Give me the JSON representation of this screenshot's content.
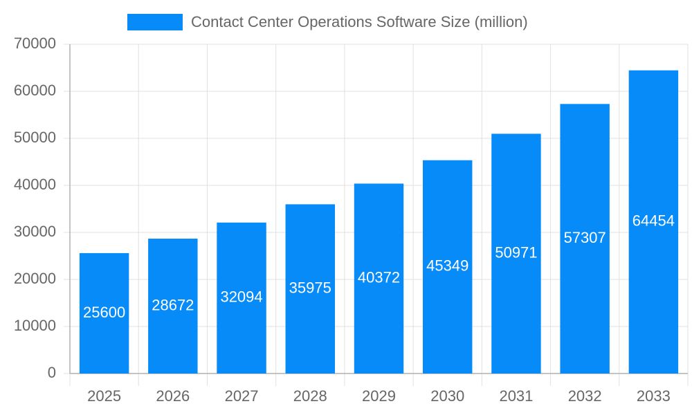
{
  "chart_data": {
    "type": "bar",
    "categories": [
      "2025",
      "2026",
      "2027",
      "2028",
      "2029",
      "2030",
      "2031",
      "2032",
      "2033"
    ],
    "series": [
      {
        "name": "Contact Center Operations Software Size (million)",
        "color": "#068bf9",
        "values": [
          25600,
          28672,
          32094,
          35975,
          40372,
          45349,
          50971,
          57307,
          64454
        ]
      }
    ],
    "ylim": [
      0,
      70000
    ],
    "yticks": [
      0,
      10000,
      20000,
      30000,
      40000,
      50000,
      60000,
      70000
    ],
    "grid": true,
    "legend": "top",
    "data_labels": true
  }
}
